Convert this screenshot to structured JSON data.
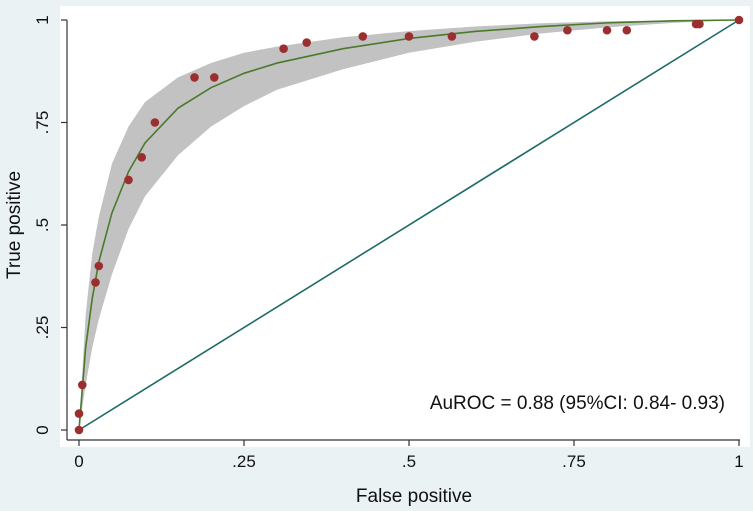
{
  "chart_data": {
    "type": "line",
    "title": "",
    "xlabel": "False positive",
    "ylabel": "True positive",
    "xlim": [
      0,
      1
    ],
    "ylim": [
      0,
      1
    ],
    "x_ticks": [
      0,
      0.25,
      0.5,
      0.75,
      1
    ],
    "x_tick_labels": [
      "0",
      ".25",
      ".5",
      ".75",
      "1"
    ],
    "y_ticks": [
      0,
      0.25,
      0.5,
      0.75,
      1
    ],
    "y_tick_labels": [
      "0",
      ".25",
      ".5",
      ".75",
      "1"
    ],
    "grid": false,
    "legend": "none",
    "annotation": "AuROC = 0.88 (95%CI: 0.84- 0.93)",
    "colors": {
      "background": "#eaf2f3",
      "plot_background": "#ffffff",
      "fit_curve": "#4b7a2a",
      "confidence_band": "#c2c2c2",
      "reference_line": "#1e6b66",
      "points": "#9b2f2f",
      "axis": "#333333"
    },
    "series": [
      {
        "type": "scatter",
        "points": [
          [
            0,
            0
          ],
          [
            0,
            0.04
          ],
          [
            0.005,
            0.11
          ],
          [
            0.025,
            0.36
          ],
          [
            0.03,
            0.4
          ],
          [
            0.075,
            0.61
          ],
          [
            0.095,
            0.665
          ],
          [
            0.115,
            0.75
          ],
          [
            0.175,
            0.86
          ],
          [
            0.205,
            0.86
          ],
          [
            0.31,
            0.93
          ],
          [
            0.345,
            0.945
          ],
          [
            0.43,
            0.96
          ],
          [
            0.5,
            0.96
          ],
          [
            0.565,
            0.96
          ],
          [
            0.69,
            0.96
          ],
          [
            0.74,
            0.975
          ],
          [
            0.8,
            0.975
          ],
          [
            0.83,
            0.975
          ],
          [
            0.935,
            0.99
          ],
          [
            0.94,
            0.99
          ],
          [
            1,
            1
          ]
        ]
      },
      {
        "type": "line",
        "x": [
          0,
          0.01,
          0.02,
          0.03,
          0.05,
          0.075,
          0.1,
          0.15,
          0.2,
          0.25,
          0.3,
          0.4,
          0.5,
          0.6,
          0.7,
          0.8,
          0.9,
          1
        ],
        "values": [
          0,
          0.2,
          0.32,
          0.41,
          0.53,
          0.63,
          0.7,
          0.785,
          0.835,
          0.87,
          0.895,
          0.93,
          0.955,
          0.972,
          0.984,
          0.993,
          0.998,
          1
        ]
      },
      {
        "type": "area",
        "x": [
          0,
          0.01,
          0.02,
          0.03,
          0.05,
          0.075,
          0.1,
          0.15,
          0.2,
          0.25,
          0.3,
          0.4,
          0.5,
          0.6,
          0.7,
          0.8,
          0.9,
          1
        ],
        "lower": [
          0,
          0.11,
          0.2,
          0.27,
          0.38,
          0.49,
          0.57,
          0.67,
          0.74,
          0.79,
          0.83,
          0.88,
          0.92,
          0.947,
          0.967,
          0.982,
          0.993,
          1
        ],
        "upper": [
          0,
          0.28,
          0.43,
          0.52,
          0.65,
          0.74,
          0.8,
          0.86,
          0.895,
          0.92,
          0.935,
          0.958,
          0.973,
          0.984,
          0.992,
          0.997,
          0.999,
          1
        ]
      },
      {
        "type": "line",
        "x": [
          0,
          1
        ],
        "values": [
          0,
          1
        ]
      }
    ]
  }
}
